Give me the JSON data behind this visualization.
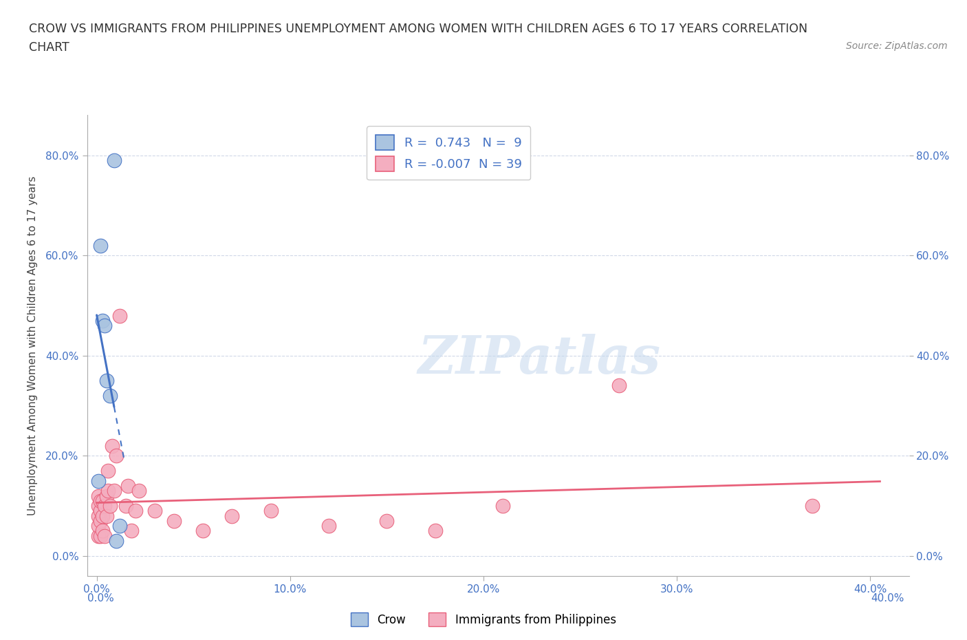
{
  "title_line1": "CROW VS IMMIGRANTS FROM PHILIPPINES UNEMPLOYMENT AMONG WOMEN WITH CHILDREN AGES 6 TO 17 YEARS CORRELATION",
  "title_line2": "CHART",
  "source_text": "Source: ZipAtlas.com",
  "ylabel": "Unemployment Among Women with Children Ages 6 to 17 years",
  "watermark": "ZIPatlas",
  "crow_R": 0.743,
  "crow_N": 9,
  "phil_R": -0.007,
  "phil_N": 39,
  "crow_color": "#aac4e0",
  "phil_color": "#f4aec0",
  "crow_line_color": "#4472c4",
  "phil_line_color": "#e8607a",
  "crow_scatter_x": [
    0.001,
    0.002,
    0.003,
    0.004,
    0.005,
    0.007,
    0.009,
    0.01,
    0.012
  ],
  "crow_scatter_y": [
    0.15,
    0.62,
    0.47,
    0.46,
    0.35,
    0.32,
    0.79,
    0.03,
    0.06
  ],
  "phil_scatter_x": [
    0.001,
    0.001,
    0.001,
    0.001,
    0.001,
    0.002,
    0.002,
    0.002,
    0.002,
    0.003,
    0.003,
    0.003,
    0.004,
    0.004,
    0.005,
    0.005,
    0.006,
    0.006,
    0.007,
    0.008,
    0.009,
    0.01,
    0.012,
    0.015,
    0.016,
    0.018,
    0.02,
    0.022,
    0.03,
    0.04,
    0.055,
    0.07,
    0.09,
    0.12,
    0.15,
    0.175,
    0.21,
    0.27,
    0.37
  ],
  "phil_scatter_y": [
    0.04,
    0.06,
    0.08,
    0.1,
    0.12,
    0.04,
    0.07,
    0.09,
    0.11,
    0.05,
    0.08,
    0.11,
    0.04,
    0.1,
    0.08,
    0.12,
    0.13,
    0.17,
    0.1,
    0.22,
    0.13,
    0.2,
    0.48,
    0.1,
    0.14,
    0.05,
    0.09,
    0.13,
    0.09,
    0.07,
    0.05,
    0.08,
    0.09,
    0.06,
    0.07,
    0.05,
    0.1,
    0.34,
    0.1
  ],
  "xlim": [
    -0.005,
    0.42
  ],
  "ylim": [
    -0.04,
    0.88
  ],
  "xticks": [
    0.0,
    0.1,
    0.2,
    0.3,
    0.4
  ],
  "xtick_labels": [
    "0.0%",
    "10.0%",
    "20.0%",
    "30.0%",
    "40.0%"
  ],
  "yticks": [
    0.0,
    0.2,
    0.4,
    0.6,
    0.8
  ],
  "ytick_labels": [
    "0.0%",
    "20.0%",
    "40.0%",
    "60.0%",
    "80.0%"
  ],
  "grid_color": "#d0d8e8",
  "bg_color": "#ffffff",
  "tick_color": "#4472c4",
  "axis_color": "#aaaaaa"
}
